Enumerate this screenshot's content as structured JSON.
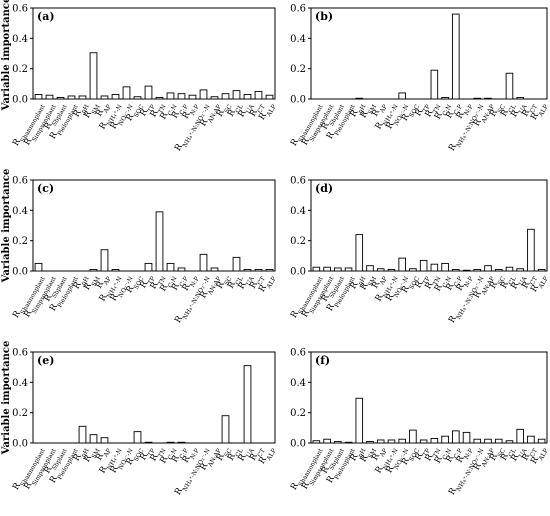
{
  "figure": {
    "ylabel": "Variable importance",
    "bar_fill": "#ffffff",
    "bar_stroke": "#000000",
    "axis_color": "#000000"
  },
  "chart_data": [
    {
      "type": "bar",
      "panel_label": "(a)",
      "ylabel": "Variable importance",
      "ylim": [
        0,
        0.6
      ],
      "yticks": [
        "0.0",
        "0.2",
        "0.4",
        "0.6"
      ],
      "grid": false,
      "categories": [
        {
          "base": "R",
          "sub": "Shannonplant"
        },
        {
          "base": "R",
          "sub": "Simpsonplant"
        },
        {
          "base": "R",
          "sub": "Sbplant"
        },
        {
          "base": "R",
          "sub": "Pielouplant"
        },
        {
          "base": "R",
          "sub": "pH"
        },
        {
          "base": "R",
          "sub": "SM"
        },
        {
          "base": "R",
          "sub": "AP"
        },
        {
          "base": "R",
          "sub": "NH4+-N"
        },
        {
          "base": "R",
          "sub": "NO3--N"
        },
        {
          "base": "R",
          "sub": "SOC"
        },
        {
          "base": "R",
          "sub": "TP"
        },
        {
          "base": "R",
          "sub": "TN"
        },
        {
          "base": "R",
          "sub": "C:N"
        },
        {
          "base": "R",
          "sub": "C:P"
        },
        {
          "base": "R",
          "sub": "N:P"
        },
        {
          "base": "R",
          "sub": "NH4+-N:NO3--N"
        },
        {
          "base": "R",
          "sub": "AN:AP"
        },
        {
          "base": "R",
          "sub": "SC"
        },
        {
          "base": "R",
          "sub": "CL"
        },
        {
          "base": "R",
          "sub": "UA"
        },
        {
          "base": "R",
          "sub": "CT"
        },
        {
          "base": "R",
          "sub": "ALP"
        }
      ],
      "values": [
        0.03,
        0.025,
        0.01,
        0.02,
        0.02,
        0.305,
        0.02,
        0.03,
        0.08,
        0.015,
        0.085,
        0.01,
        0.04,
        0.035,
        0.025,
        0.06,
        0.015,
        0.035,
        0.055,
        0.03,
        0.05,
        0.025
      ]
    },
    {
      "type": "bar",
      "panel_label": "(b)",
      "ylabel": "",
      "ylim": [
        0,
        0.6
      ],
      "yticks": [
        "0.0",
        "0.2",
        "0.4",
        "0.6"
      ],
      "grid": false,
      "categories": [
        {
          "base": "R",
          "sub": "Shannonplant"
        },
        {
          "base": "R",
          "sub": "Simpsonplant"
        },
        {
          "base": "R",
          "sub": "Sbplant"
        },
        {
          "base": "R",
          "sub": "Pielouplant"
        },
        {
          "base": "R",
          "sub": "pH"
        },
        {
          "base": "R",
          "sub": "SM"
        },
        {
          "base": "R",
          "sub": "AP"
        },
        {
          "base": "R",
          "sub": "NH4+-N"
        },
        {
          "base": "R",
          "sub": "NO3--N"
        },
        {
          "base": "R",
          "sub": "SOC"
        },
        {
          "base": "R",
          "sub": "TP"
        },
        {
          "base": "R",
          "sub": "TN"
        },
        {
          "base": "R",
          "sub": "C:N"
        },
        {
          "base": "R",
          "sub": "C:P"
        },
        {
          "base": "R",
          "sub": "N:P"
        },
        {
          "base": "R",
          "sub": "NH4+-N:NO3--N"
        },
        {
          "base": "R",
          "sub": "AN:AP"
        },
        {
          "base": "R",
          "sub": "SC"
        },
        {
          "base": "R",
          "sub": "CL"
        },
        {
          "base": "R",
          "sub": "UA"
        },
        {
          "base": "R",
          "sub": "CT"
        },
        {
          "base": "R",
          "sub": "ALP"
        }
      ],
      "values": [
        0.0,
        0.0,
        0.0,
        0.0,
        0.005,
        0.0,
        0.0,
        0.0,
        0.04,
        0.0,
        0.0,
        0.19,
        0.01,
        0.56,
        0.0,
        0.005,
        0.005,
        0.0,
        0.17,
        0.01,
        0.0,
        0.0
      ]
    },
    {
      "type": "bar",
      "panel_label": "(c)",
      "ylabel": "Variable importance",
      "ylim": [
        0,
        0.6
      ],
      "yticks": [
        "0.0",
        "0.2",
        "0.4",
        "0.6"
      ],
      "grid": false,
      "categories": [
        {
          "base": "R",
          "sub": "Shannonplant"
        },
        {
          "base": "R",
          "sub": "Simpsonplant"
        },
        {
          "base": "R",
          "sub": "Sbplant"
        },
        {
          "base": "R",
          "sub": "Pielouplant"
        },
        {
          "base": "R",
          "sub": "pH"
        },
        {
          "base": "R",
          "sub": "SM"
        },
        {
          "base": "R",
          "sub": "AP"
        },
        {
          "base": "R",
          "sub": "NH4+-N"
        },
        {
          "base": "R",
          "sub": "NO3--N"
        },
        {
          "base": "R",
          "sub": "SOC"
        },
        {
          "base": "R",
          "sub": "TP"
        },
        {
          "base": "R",
          "sub": "TN"
        },
        {
          "base": "R",
          "sub": "C:N"
        },
        {
          "base": "R",
          "sub": "C:P"
        },
        {
          "base": "R",
          "sub": "N:P"
        },
        {
          "base": "R",
          "sub": "NH4+-N:NO3--N"
        },
        {
          "base": "R",
          "sub": "AN:AP"
        },
        {
          "base": "R",
          "sub": "SC"
        },
        {
          "base": "R",
          "sub": "CL"
        },
        {
          "base": "R",
          "sub": "UA"
        },
        {
          "base": "R",
          "sub": "CT"
        },
        {
          "base": "R",
          "sub": "ALP"
        }
      ],
      "values": [
        0.05,
        0.0,
        0.0,
        0.0,
        0.0,
        0.01,
        0.14,
        0.01,
        0.0,
        0.0,
        0.05,
        0.39,
        0.05,
        0.02,
        0.0,
        0.11,
        0.02,
        0.0,
        0.09,
        0.01,
        0.01,
        0.01
      ]
    },
    {
      "type": "bar",
      "panel_label": "(d)",
      "ylabel": "",
      "ylim": [
        0,
        0.6
      ],
      "yticks": [
        "0.0",
        "0.2",
        "0.4",
        "0.6"
      ],
      "grid": false,
      "categories": [
        {
          "base": "R",
          "sub": "Shannonplant"
        },
        {
          "base": "R",
          "sub": "Simpsonplant"
        },
        {
          "base": "R",
          "sub": "Sbplant"
        },
        {
          "base": "R",
          "sub": "Pielouplant"
        },
        {
          "base": "R",
          "sub": "pH"
        },
        {
          "base": "R",
          "sub": "SM"
        },
        {
          "base": "R",
          "sub": "AP"
        },
        {
          "base": "R",
          "sub": "NH4+-N"
        },
        {
          "base": "R",
          "sub": "NO3--N"
        },
        {
          "base": "R",
          "sub": "SOC"
        },
        {
          "base": "R",
          "sub": "TP"
        },
        {
          "base": "R",
          "sub": "TN"
        },
        {
          "base": "R",
          "sub": "C:N"
        },
        {
          "base": "R",
          "sub": "C:P"
        },
        {
          "base": "R",
          "sub": "N:P"
        },
        {
          "base": "R",
          "sub": "NH4+-N:NO3--N"
        },
        {
          "base": "R",
          "sub": "AN:AP"
        },
        {
          "base": "R",
          "sub": "SC"
        },
        {
          "base": "R",
          "sub": "CL"
        },
        {
          "base": "R",
          "sub": "UA"
        },
        {
          "base": "R",
          "sub": "CT"
        },
        {
          "base": "R",
          "sub": "ALP"
        }
      ],
      "values": [
        0.025,
        0.025,
        0.02,
        0.02,
        0.24,
        0.035,
        0.015,
        0.01,
        0.085,
        0.015,
        0.07,
        0.045,
        0.05,
        0.01,
        0.005,
        0.01,
        0.035,
        0.01,
        0.025,
        0.015,
        0.275,
        0.01
      ]
    },
    {
      "type": "bar",
      "panel_label": "(e)",
      "ylabel": "Variable importance",
      "ylim": [
        0,
        0.6
      ],
      "yticks": [
        "0.0",
        "0.2",
        "0.4",
        "0.6"
      ],
      "grid": false,
      "categories": [
        {
          "base": "R",
          "sub": "Shannonplant"
        },
        {
          "base": "R",
          "sub": "Simpsonplant"
        },
        {
          "base": "R",
          "sub": "Sbplant"
        },
        {
          "base": "R",
          "sub": "Pielouplant"
        },
        {
          "base": "R",
          "sub": "pH"
        },
        {
          "base": "R",
          "sub": "SM"
        },
        {
          "base": "R",
          "sub": "AP"
        },
        {
          "base": "R",
          "sub": "NH4+-N"
        },
        {
          "base": "R",
          "sub": "NO3--N"
        },
        {
          "base": "R",
          "sub": "SOC"
        },
        {
          "base": "R",
          "sub": "TP"
        },
        {
          "base": "R",
          "sub": "TN"
        },
        {
          "base": "R",
          "sub": "C:N"
        },
        {
          "base": "R",
          "sub": "C:P"
        },
        {
          "base": "R",
          "sub": "N:P"
        },
        {
          "base": "R",
          "sub": "NH4+-N:NO3--N"
        },
        {
          "base": "R",
          "sub": "AN:AP"
        },
        {
          "base": "R",
          "sub": "SC"
        },
        {
          "base": "R",
          "sub": "CL"
        },
        {
          "base": "R",
          "sub": "UA"
        },
        {
          "base": "R",
          "sub": "CT"
        },
        {
          "base": "R",
          "sub": "ALP"
        }
      ],
      "values": [
        0.0,
        0.0,
        0.0,
        0.0,
        0.11,
        0.055,
        0.035,
        0.0,
        0.0,
        0.075,
        0.005,
        0.0,
        0.005,
        0.005,
        0.0,
        0.0,
        0.0,
        0.18,
        0.0,
        0.51,
        0.0,
        0.0
      ]
    },
    {
      "type": "bar",
      "panel_label": "(f)",
      "ylabel": "",
      "ylim": [
        0,
        0.6
      ],
      "yticks": [
        "0.0",
        "0.2",
        "0.4",
        "0.6"
      ],
      "grid": false,
      "categories": [
        {
          "base": "R",
          "sub": "Shannonplant"
        },
        {
          "base": "R",
          "sub": "Simpsonplant"
        },
        {
          "base": "R",
          "sub": "Sbplant"
        },
        {
          "base": "R",
          "sub": "Pielouplant"
        },
        {
          "base": "R",
          "sub": "pH"
        },
        {
          "base": "R",
          "sub": "SM"
        },
        {
          "base": "R",
          "sub": "AP"
        },
        {
          "base": "R",
          "sub": "NH4+-N"
        },
        {
          "base": "R",
          "sub": "NO3--N"
        },
        {
          "base": "R",
          "sub": "SOC"
        },
        {
          "base": "R",
          "sub": "TP"
        },
        {
          "base": "R",
          "sub": "TN"
        },
        {
          "base": "R",
          "sub": "C:N"
        },
        {
          "base": "R",
          "sub": "C:P"
        },
        {
          "base": "R",
          "sub": "N:P"
        },
        {
          "base": "R",
          "sub": "NH4+-N:NO3--N"
        },
        {
          "base": "R",
          "sub": "AN:AP"
        },
        {
          "base": "R",
          "sub": "SC"
        },
        {
          "base": "R",
          "sub": "CL"
        },
        {
          "base": "R",
          "sub": "UA"
        },
        {
          "base": "R",
          "sub": "CT"
        },
        {
          "base": "R",
          "sub": "ALP"
        }
      ],
      "values": [
        0.015,
        0.025,
        0.01,
        0.005,
        0.295,
        0.01,
        0.02,
        0.02,
        0.025,
        0.085,
        0.02,
        0.03,
        0.045,
        0.08,
        0.07,
        0.025,
        0.025,
        0.025,
        0.015,
        0.09,
        0.045,
        0.025
      ]
    }
  ]
}
